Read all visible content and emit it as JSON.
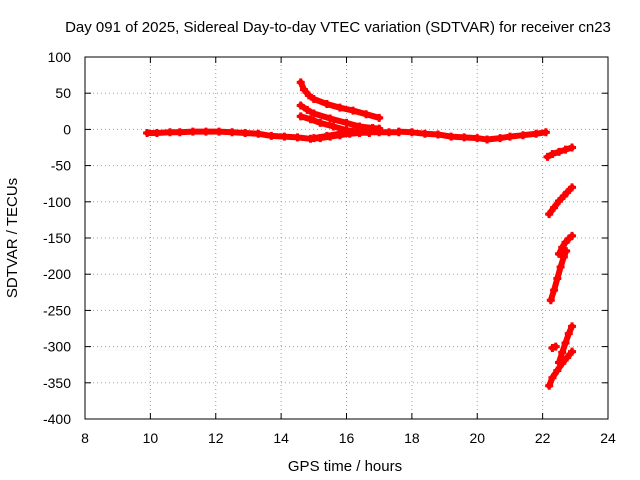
{
  "chart_data": {
    "type": "scatter",
    "title": "Day 091 of 2025, Sidereal Day-to-day VTEC variation (SDTVAR) for receiver cn23",
    "xlabel": "GPS time / hours",
    "ylabel": "SDTVAR / TECUs",
    "xlim": [
      8,
      24
    ],
    "ylim": [
      -400,
      100
    ],
    "xticks": [
      "8",
      "10",
      "12",
      "14",
      "16",
      "18",
      "20",
      "22",
      "24"
    ],
    "yticks": [
      "100",
      "50",
      "0",
      "-50",
      "-100",
      "-150",
      "-200",
      "-250",
      "-300",
      "-350",
      "-400"
    ],
    "grid": true,
    "series_color": "#ff0000",
    "series": [
      {
        "name": "baseline-1",
        "points": [
          [
            9.9,
            -5
          ],
          [
            10.2,
            -5
          ],
          [
            10.6,
            -4
          ],
          [
            10.9,
            -4
          ],
          [
            11.3,
            -3
          ],
          [
            11.7,
            -3
          ],
          [
            12.1,
            -3
          ],
          [
            12.5,
            -4
          ],
          [
            12.9,
            -5
          ],
          [
            13.3,
            -6
          ],
          [
            13.7,
            -9
          ],
          [
            14.1,
            -10
          ],
          [
            14.5,
            -11
          ],
          [
            14.9,
            -13
          ],
          [
            15.2,
            -12
          ],
          [
            15.5,
            -10
          ],
          [
            15.8,
            -8
          ],
          [
            16.1,
            -6
          ],
          [
            16.4,
            -5
          ],
          [
            16.7,
            -4
          ],
          [
            17.0,
            -4
          ],
          [
            17.3,
            -4
          ],
          [
            17.6,
            -4
          ]
        ]
      },
      {
        "name": "baseline-2",
        "points": [
          [
            17.6,
            -3
          ],
          [
            18.0,
            -4
          ],
          [
            18.4,
            -6
          ],
          [
            18.8,
            -7
          ],
          [
            19.2,
            -10
          ],
          [
            19.6,
            -11
          ],
          [
            20.0,
            -12
          ],
          [
            20.3,
            -14
          ],
          [
            20.7,
            -12
          ],
          [
            21.0,
            -10
          ],
          [
            21.4,
            -8
          ],
          [
            21.8,
            -6
          ],
          [
            22.1,
            -4
          ]
        ]
      },
      {
        "name": "arc-1",
        "points": [
          [
            14.6,
            65
          ],
          [
            14.7,
            55
          ],
          [
            14.85,
            47
          ],
          [
            15.0,
            42
          ],
          [
            15.4,
            35
          ],
          [
            15.8,
            30
          ],
          [
            16.2,
            26
          ],
          [
            16.6,
            21
          ],
          [
            17.0,
            16
          ]
        ]
      },
      {
        "name": "arc-2",
        "points": [
          [
            14.6,
            33
          ],
          [
            14.8,
            27
          ],
          [
            15.0,
            22
          ],
          [
            15.5,
            15
          ],
          [
            16.0,
            9
          ],
          [
            16.4,
            4
          ],
          [
            16.8,
            2
          ],
          [
            17.0,
            1
          ]
        ]
      },
      {
        "name": "arc-3",
        "points": [
          [
            14.6,
            18
          ],
          [
            14.9,
            14
          ],
          [
            15.2,
            9
          ],
          [
            15.6,
            4
          ],
          [
            16.0,
            -1
          ],
          [
            16.4,
            -4
          ],
          [
            16.7,
            -5
          ]
        ]
      },
      {
        "name": "arc-4",
        "points": [
          [
            15.0,
            -12
          ],
          [
            15.4,
            -9
          ],
          [
            15.8,
            -6
          ],
          [
            16.2,
            -3
          ],
          [
            16.6,
            -1
          ],
          [
            17.0,
            0
          ]
        ]
      },
      {
        "name": "drop-1",
        "points": [
          [
            22.15,
            -38
          ],
          [
            22.3,
            -34
          ],
          [
            22.5,
            -31
          ],
          [
            22.7,
            -28
          ],
          [
            22.9,
            -25
          ]
        ]
      },
      {
        "name": "drop-2",
        "points": [
          [
            22.2,
            -117
          ],
          [
            22.35,
            -108
          ],
          [
            22.5,
            -99
          ],
          [
            22.65,
            -92
          ],
          [
            22.75,
            -87
          ],
          [
            22.9,
            -80
          ]
        ]
      },
      {
        "name": "drop-3",
        "points": [
          [
            22.25,
            -236
          ],
          [
            22.35,
            -222
          ],
          [
            22.45,
            -206
          ],
          [
            22.55,
            -190
          ],
          [
            22.65,
            -176
          ],
          [
            22.72,
            -168
          ]
        ]
      },
      {
        "name": "drop-4",
        "points": [
          [
            22.5,
            -172
          ],
          [
            22.6,
            -163
          ],
          [
            22.7,
            -156
          ],
          [
            22.8,
            -151
          ],
          [
            22.9,
            -147
          ]
        ]
      },
      {
        "name": "drop-5",
        "points": [
          [
            22.3,
            -302
          ],
          [
            22.4,
            -300
          ]
        ]
      },
      {
        "name": "drop-6",
        "points": [
          [
            22.2,
            -354
          ],
          [
            22.3,
            -343
          ],
          [
            22.45,
            -333
          ],
          [
            22.6,
            -323
          ],
          [
            22.75,
            -315
          ],
          [
            22.9,
            -307
          ]
        ]
      },
      {
        "name": "drop-7",
        "points": [
          [
            22.5,
            -322
          ],
          [
            22.6,
            -308
          ],
          [
            22.7,
            -295
          ],
          [
            22.8,
            -282
          ],
          [
            22.9,
            -272
          ]
        ]
      }
    ]
  }
}
